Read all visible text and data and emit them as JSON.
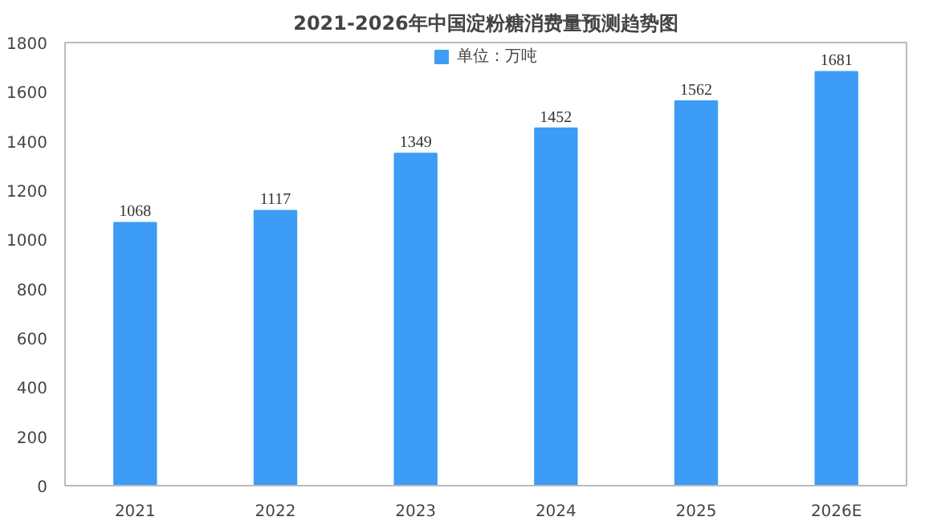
{
  "chart_data": {
    "type": "bar",
    "title": "2021-2026年中国淀粉糖消费量预测趋势图",
    "categories": [
      "2021",
      "2022",
      "2023",
      "2024",
      "2025",
      "2026E"
    ],
    "series": [
      {
        "name": "单位：万吨",
        "color": "#3d9cf5",
        "values": [
          1068,
          1117,
          1349,
          1452,
          1562,
          1681
        ]
      }
    ],
    "ylim": [
      0,
      1800
    ],
    "yticks": [
      0,
      200,
      400,
      600,
      800,
      1000,
      1200,
      1400,
      1600,
      1800
    ],
    "data_labels": true,
    "legend": "top",
    "grid": false
  }
}
